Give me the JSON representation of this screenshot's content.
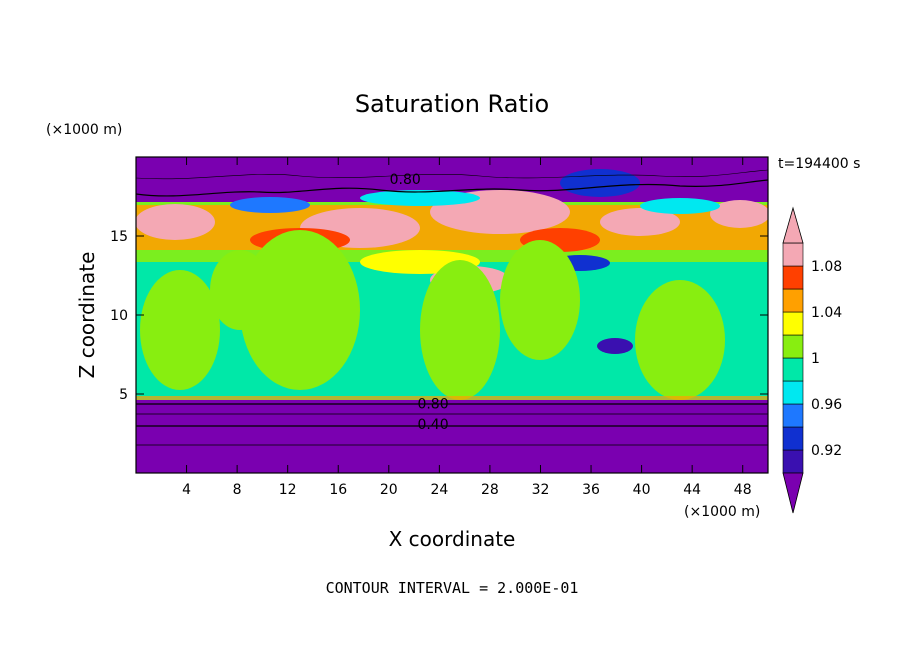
{
  "chart_data": {
    "type": "heatmap",
    "title": "Saturation Ratio",
    "xlabel": "X coordinate",
    "ylabel": "Z coordinate",
    "x_unit": "(×1000 m)",
    "y_unit": "(×1000 m)",
    "time_label": "t=194400 s",
    "xlim": [
      0,
      50
    ],
    "ylim": [
      0,
      20
    ],
    "x_ticks": [
      4,
      8,
      12,
      16,
      20,
      24,
      28,
      32,
      36,
      40,
      44,
      48
    ],
    "y_ticks": [
      5,
      10,
      15
    ],
    "colorbar": {
      "levels": [
        0.9,
        0.92,
        0.94,
        0.96,
        0.98,
        1.0,
        1.02,
        1.04,
        1.06,
        1.08,
        1.1
      ],
      "tick_labels": [
        "0.92",
        "0.96",
        "1",
        "1.04",
        "1.08"
      ],
      "tick_values": [
        0.92,
        0.96,
        1.0,
        1.04,
        1.08
      ],
      "colors": [
        "#7a00b0",
        "#3a10b0",
        "#1030d0",
        "#1e78ff",
        "#00e8f0",
        "#00e8a8",
        "#88ee10",
        "#ffff00",
        "#ffa000",
        "#ff4000",
        "#f4a8b4"
      ],
      "extend": "both"
    },
    "contour_labels": [
      {
        "text": "0.80",
        "x": 21.3,
        "z": 18.6
      },
      {
        "text": "0.80",
        "x": 23.5,
        "z": 4.4
      },
      {
        "text": "0.40",
        "x": 23.5,
        "z": 3.1
      }
    ],
    "footer": "CONTOUR INTERVAL = 2.000E-01",
    "regions_description_values": {
      "upper_dry_layer_z": [
        17.8,
        20
      ],
      "moist_band_z": [
        12.5,
        17.8
      ],
      "mid_layer_z": [
        4.8,
        12.5
      ],
      "lower_dry_layer_z": [
        0,
        4.6
      ]
    }
  }
}
